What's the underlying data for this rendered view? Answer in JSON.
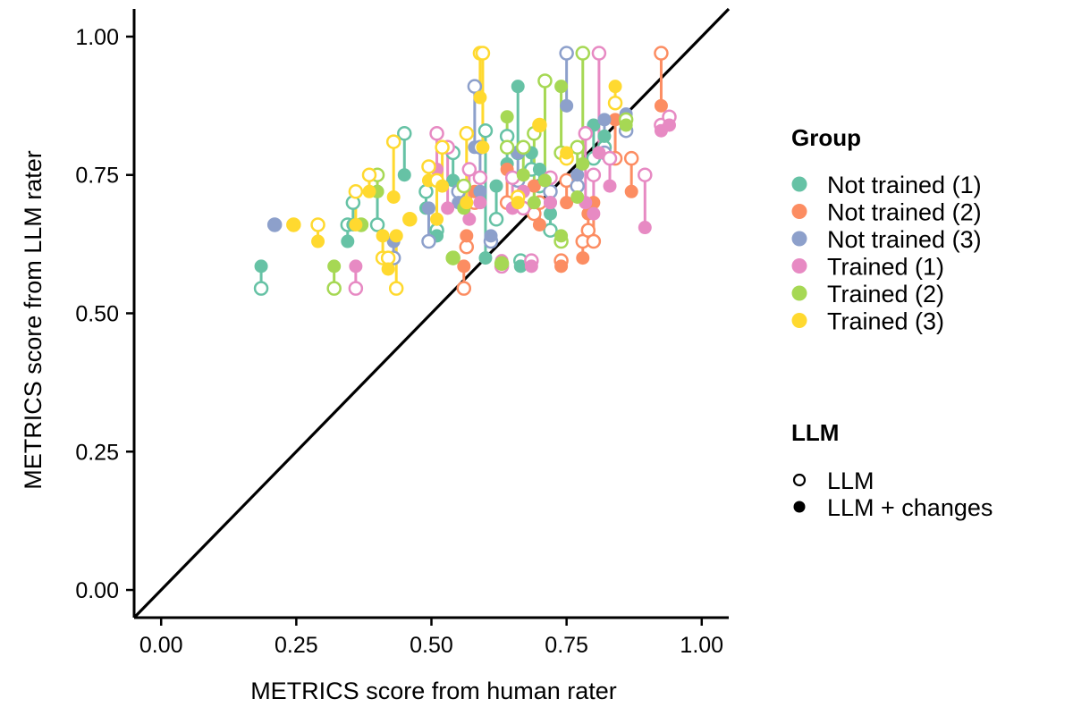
{
  "chart_data": {
    "type": "scatter",
    "xlabel": "METRICS score from human rater",
    "ylabel": "METRICS score from LLM rater",
    "xlim": [
      -0.05,
      1.05
    ],
    "ylim": [
      -0.05,
      1.05
    ],
    "xticks": [
      "0.00",
      "0.25",
      "0.50",
      "0.75",
      "1.00"
    ],
    "yticks": [
      "0.00",
      "0.25",
      "0.50",
      "0.75",
      "1.00"
    ],
    "reference_line": "y = x",
    "grid": false,
    "legend_placement": "right",
    "legend_group": {
      "title": "Group",
      "entries": [
        {
          "label": "Not trained (1)",
          "color": "#66c2a5"
        },
        {
          "label": "Not trained (2)",
          "color": "#fc8d62"
        },
        {
          "label": "Not trained (3)",
          "color": "#8da0cb"
        },
        {
          "label": "Trained (1)",
          "color": "#e78ac3"
        },
        {
          "label": "Trained (2)",
          "color": "#a6d854"
        },
        {
          "label": "Trained (3)",
          "color": "#ffd92f"
        }
      ]
    },
    "legend_llm": {
      "title": "LLM",
      "entries": [
        {
          "label": "LLM",
          "shape": "open-circle"
        },
        {
          "label": "LLM + changes",
          "shape": "filled-circle"
        }
      ]
    },
    "series": [
      {
        "name": "Not trained (1)",
        "color": "#66c2a5",
        "points": [
          {
            "x": 0.185,
            "llm": 0.545,
            "changed": 0.585
          },
          {
            "x": 0.345,
            "llm": 0.66,
            "changed": 0.63
          },
          {
            "x": 0.355,
            "llm": 0.7,
            "changed": 0.66
          },
          {
            "x": 0.4,
            "llm": 0.66,
            "changed": 0.72
          },
          {
            "x": 0.45,
            "llm": 0.825,
            "changed": 0.75
          },
          {
            "x": 0.49,
            "llm": 0.72,
            "changed": 0.69
          },
          {
            "x": 0.51,
            "llm": 0.65,
            "changed": 0.64
          },
          {
            "x": 0.54,
            "llm": 0.79,
            "changed": 0.74
          },
          {
            "x": 0.6,
            "llm": 0.83,
            "changed": 0.6
          },
          {
            "x": 0.62,
            "llm": 0.67,
            "changed": 0.73
          },
          {
            "x": 0.64,
            "llm": 0.82,
            "changed": 0.77
          },
          {
            "x": 0.66,
            "llm": 0.79,
            "changed": 0.91
          },
          {
            "x": 0.665,
            "llm": 0.595,
            "changed": 0.585
          },
          {
            "x": 0.685,
            "llm": 0.76,
            "changed": 0.79
          },
          {
            "x": 0.7,
            "llm": 0.73,
            "changed": 0.76
          },
          {
            "x": 0.72,
            "llm": 0.65,
            "changed": 0.68
          },
          {
            "x": 0.8,
            "llm": 0.78,
            "changed": 0.84
          },
          {
            "x": 0.82,
            "llm": 0.8,
            "changed": 0.82
          }
        ]
      },
      {
        "name": "Not trained (2)",
        "color": "#fc8d62",
        "points": [
          {
            "x": 0.56,
            "llm": 0.545,
            "changed": 0.585
          },
          {
            "x": 0.565,
            "llm": 0.62,
            "changed": 0.64
          },
          {
            "x": 0.58,
            "llm": 0.7,
            "changed": 0.72
          },
          {
            "x": 0.64,
            "llm": 0.7,
            "changed": 0.76
          },
          {
            "x": 0.69,
            "llm": 0.68,
            "changed": 0.73
          },
          {
            "x": 0.7,
            "llm": 0.7,
            "changed": 0.66
          },
          {
            "x": 0.74,
            "llm": 0.595,
            "changed": 0.585
          },
          {
            "x": 0.75,
            "llm": 0.74,
            "changed": 0.7
          },
          {
            "x": 0.78,
            "llm": 0.63,
            "changed": 0.6
          },
          {
            "x": 0.79,
            "llm": 0.65,
            "changed": 0.68
          },
          {
            "x": 0.8,
            "llm": 0.63,
            "changed": 0.7
          },
          {
            "x": 0.84,
            "llm": 0.78,
            "changed": 0.85
          },
          {
            "x": 0.87,
            "llm": 0.78,
            "changed": 0.72
          },
          {
            "x": 0.925,
            "llm": 0.97,
            "changed": 0.875
          }
        ]
      },
      {
        "name": "Not trained (3)",
        "color": "#8da0cb",
        "points": [
          {
            "x": 0.21,
            "llm": 0.66,
            "changed": 0.66
          },
          {
            "x": 0.43,
            "llm": 0.6,
            "changed": 0.63
          },
          {
            "x": 0.495,
            "llm": 0.63,
            "changed": 0.69
          },
          {
            "x": 0.55,
            "llm": 0.72,
            "changed": 0.7
          },
          {
            "x": 0.58,
            "llm": 0.91,
            "changed": 0.8
          },
          {
            "x": 0.59,
            "llm": 0.8,
            "changed": 0.72
          },
          {
            "x": 0.61,
            "llm": 0.63,
            "changed": 0.64
          },
          {
            "x": 0.66,
            "llm": 0.74,
            "changed": 0.79
          },
          {
            "x": 0.72,
            "llm": 0.72,
            "changed": 0.7
          },
          {
            "x": 0.75,
            "llm": 0.97,
            "changed": 0.875
          },
          {
            "x": 0.77,
            "llm": 0.73,
            "changed": 0.75
          },
          {
            "x": 0.82,
            "llm": 0.79,
            "changed": 0.85
          },
          {
            "x": 0.86,
            "llm": 0.83,
            "changed": 0.86
          }
        ]
      },
      {
        "name": "Trained (1)",
        "color": "#e78ac3",
        "points": [
          {
            "x": 0.36,
            "llm": 0.545,
            "changed": 0.585
          },
          {
            "x": 0.51,
            "llm": 0.825,
            "changed": 0.76
          },
          {
            "x": 0.53,
            "llm": 0.8,
            "changed": 0.69
          },
          {
            "x": 0.57,
            "llm": 0.76,
            "changed": 0.67
          },
          {
            "x": 0.59,
            "llm": 0.745,
            "changed": 0.7
          },
          {
            "x": 0.63,
            "llm": 0.585,
            "changed": 0.595
          },
          {
            "x": 0.65,
            "llm": 0.745,
            "changed": 0.69
          },
          {
            "x": 0.67,
            "llm": 0.69,
            "changed": 0.72
          },
          {
            "x": 0.685,
            "llm": 0.595,
            "changed": 0.585
          },
          {
            "x": 0.72,
            "llm": 0.745,
            "changed": 0.7
          },
          {
            "x": 0.785,
            "llm": 0.825,
            "changed": 0.7
          },
          {
            "x": 0.8,
            "llm": 0.75,
            "changed": 0.68
          },
          {
            "x": 0.81,
            "llm": 0.97,
            "changed": 0.79
          },
          {
            "x": 0.83,
            "llm": 0.78,
            "changed": 0.73
          },
          {
            "x": 0.895,
            "llm": 0.75,
            "changed": 0.655
          },
          {
            "x": 0.925,
            "llm": 0.84,
            "changed": 0.83
          },
          {
            "x": 0.94,
            "llm": 0.855,
            "changed": 0.84
          }
        ]
      },
      {
        "name": "Trained (2)",
        "color": "#a6d854",
        "points": [
          {
            "x": 0.32,
            "llm": 0.545,
            "changed": 0.585
          },
          {
            "x": 0.37,
            "llm": 0.66,
            "changed": 0.66
          },
          {
            "x": 0.4,
            "llm": 0.75,
            "changed": 0.72
          },
          {
            "x": 0.54,
            "llm": 0.6,
            "changed": 0.6
          },
          {
            "x": 0.56,
            "llm": 0.73,
            "changed": 0.69
          },
          {
            "x": 0.63,
            "llm": 0.59,
            "changed": 0.59
          },
          {
            "x": 0.64,
            "llm": 0.8,
            "changed": 0.855
          },
          {
            "x": 0.67,
            "llm": 0.8,
            "changed": 0.75
          },
          {
            "x": 0.69,
            "llm": 0.825,
            "changed": 0.7
          },
          {
            "x": 0.71,
            "llm": 0.92,
            "changed": 0.74
          },
          {
            "x": 0.74,
            "llm": 0.63,
            "changed": 0.64
          },
          {
            "x": 0.74,
            "llm": 0.79,
            "changed": 0.91
          },
          {
            "x": 0.77,
            "llm": 0.8,
            "changed": 0.71
          },
          {
            "x": 0.78,
            "llm": 0.97,
            "changed": 0.77
          },
          {
            "x": 0.86,
            "llm": 0.85,
            "changed": 0.84
          }
        ]
      },
      {
        "name": "Trained (3)",
        "color": "#ffd92f",
        "points": [
          {
            "x": 0.245,
            "llm": 0.66,
            "changed": 0.66
          },
          {
            "x": 0.29,
            "llm": 0.66,
            "changed": 0.63
          },
          {
            "x": 0.36,
            "llm": 0.72,
            "changed": 0.66
          },
          {
            "x": 0.385,
            "llm": 0.75,
            "changed": 0.72
          },
          {
            "x": 0.41,
            "llm": 0.6,
            "changed": 0.64
          },
          {
            "x": 0.42,
            "llm": 0.6,
            "changed": 0.58
          },
          {
            "x": 0.43,
            "llm": 0.81,
            "changed": 0.71
          },
          {
            "x": 0.435,
            "llm": 0.545,
            "changed": 0.64
          },
          {
            "x": 0.46,
            "llm": 0.67,
            "changed": 0.67
          },
          {
            "x": 0.495,
            "llm": 0.765,
            "changed": 0.74
          },
          {
            "x": 0.51,
            "llm": 0.74,
            "changed": 0.67
          },
          {
            "x": 0.52,
            "llm": 0.8,
            "changed": 0.73
          },
          {
            "x": 0.565,
            "llm": 0.825,
            "changed": 0.7
          },
          {
            "x": 0.59,
            "llm": 0.97,
            "changed": 0.89
          },
          {
            "x": 0.595,
            "llm": 0.97,
            "changed": 0.8
          },
          {
            "x": 0.66,
            "llm": 0.71,
            "changed": 0.7
          },
          {
            "x": 0.7,
            "llm": 0.84,
            "changed": 0.84
          },
          {
            "x": 0.75,
            "llm": 0.78,
            "changed": 0.79
          },
          {
            "x": 0.84,
            "llm": 0.88,
            "changed": 0.91
          }
        ]
      }
    ]
  }
}
